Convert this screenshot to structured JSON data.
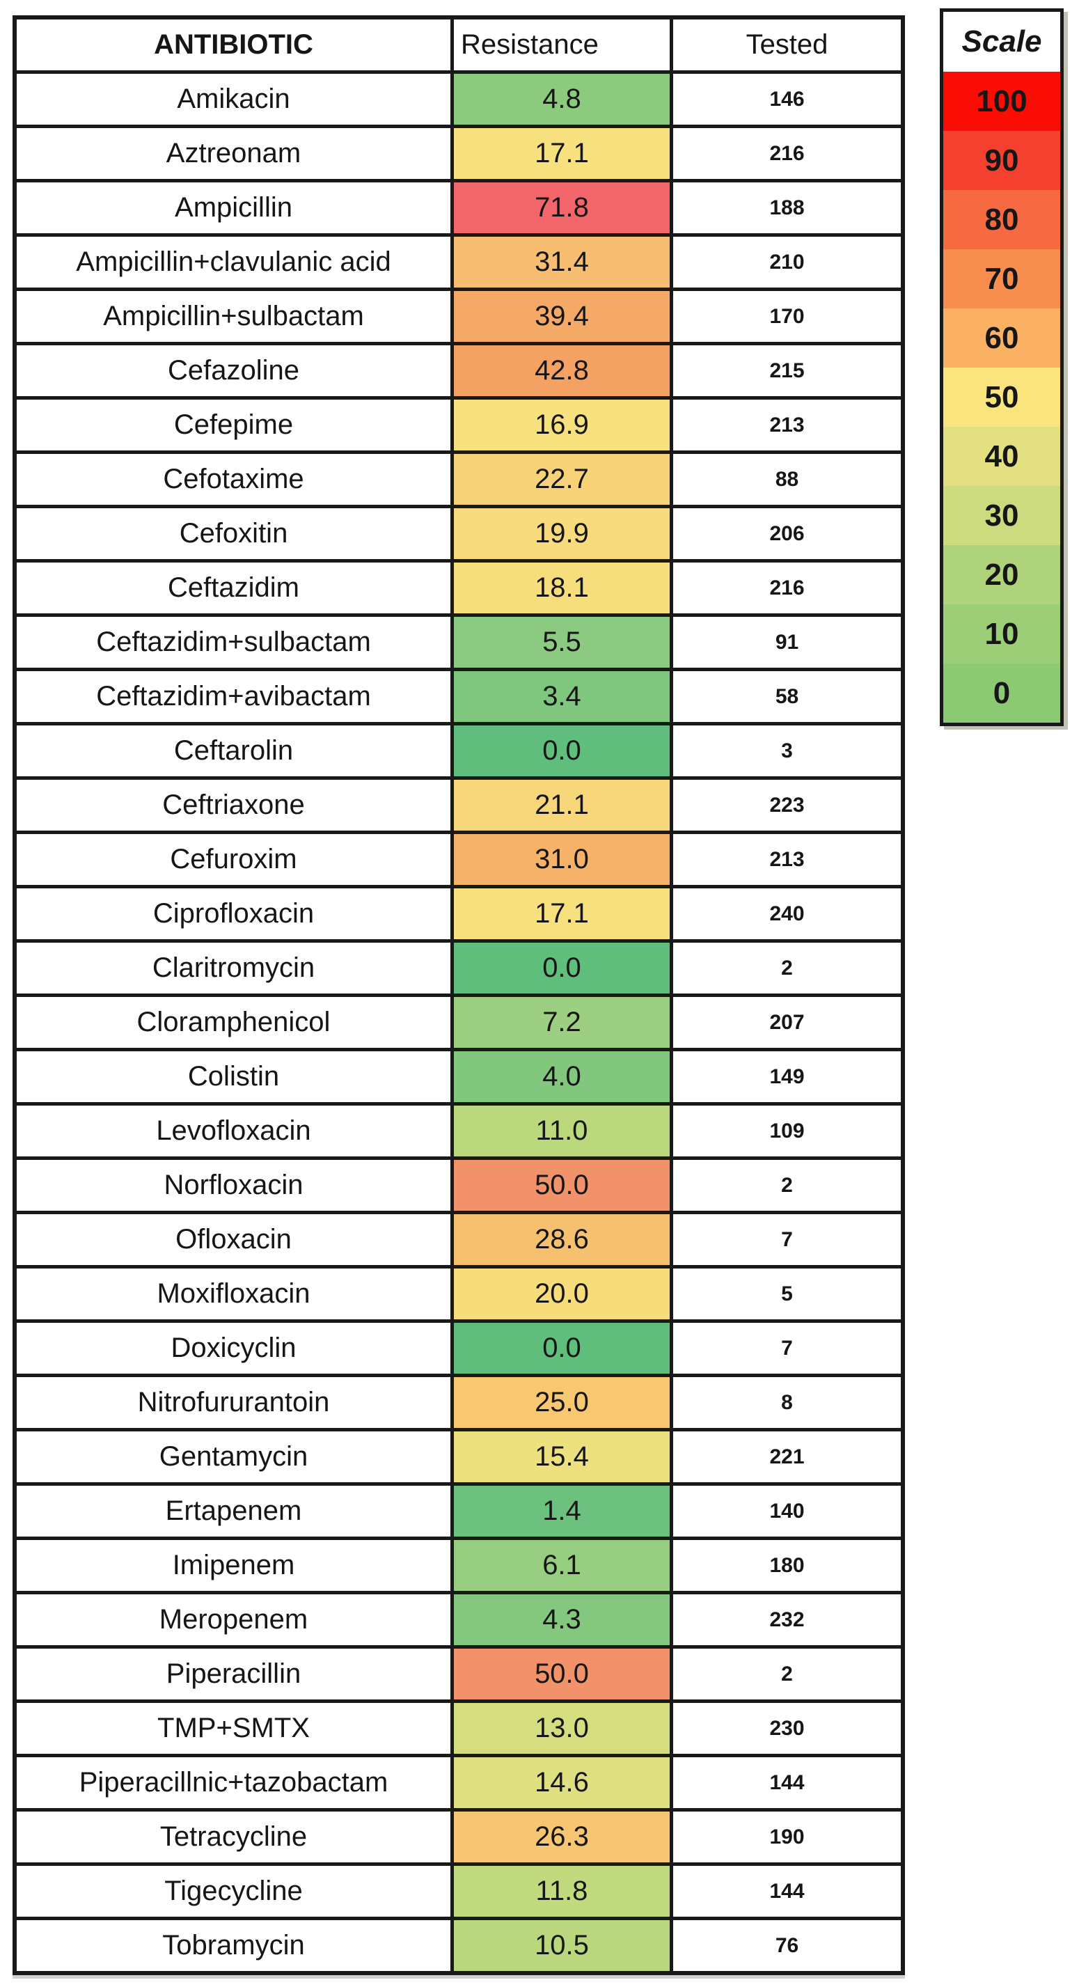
{
  "table": {
    "headers": {
      "antibiotic": "ANTIBIOTIC",
      "resistance": "Resistance",
      "tested": "Tested"
    },
    "rows": [
      {
        "name": "Amikacin",
        "resistance": "4.8",
        "tested": "146",
        "color": "#8CCB7E"
      },
      {
        "name": "Aztreonam",
        "resistance": "17.1",
        "tested": "216",
        "color": "#F7E07E"
      },
      {
        "name": "Ampicillin",
        "resistance": "71.8",
        "tested": "188",
        "color": "#F2656A"
      },
      {
        "name": "Ampicillin+clavulanic acid",
        "resistance": "31.4",
        "tested": "210",
        "color": "#F7BD71"
      },
      {
        "name": "Ampicillin+sulbactam",
        "resistance": "39.4",
        "tested": "170",
        "color": "#F5A966"
      },
      {
        "name": "Cefazoline",
        "resistance": "42.8",
        "tested": "215",
        "color": "#F4A264"
      },
      {
        "name": "Cefepime",
        "resistance": "16.9",
        "tested": "213",
        "color": "#F7E17E"
      },
      {
        "name": "Cefotaxime",
        "resistance": "22.7",
        "tested": "88",
        "color": "#F7D278"
      },
      {
        "name": "Cefoxitin",
        "resistance": "19.9",
        "tested": "206",
        "color": "#F7DB7C"
      },
      {
        "name": "Ceftazidim",
        "resistance": "18.1",
        "tested": "216",
        "color": "#F7DE7D"
      },
      {
        "name": "Ceftazidim+sulbactam",
        "resistance": "5.5",
        "tested": "91",
        "color": "#8BCA80"
      },
      {
        "name": "Ceftazidim+avibactam",
        "resistance": "3.4",
        "tested": "58",
        "color": "#7FC77F"
      },
      {
        "name": "Ceftarolin",
        "resistance": "0.0",
        "tested": "3",
        "color": "#5FBE7B"
      },
      {
        "name": "Ceftriaxone",
        "resistance": "21.1",
        "tested": "223",
        "color": "#F7D77A"
      },
      {
        "name": "Cefuroxim",
        "resistance": "31.0",
        "tested": "213",
        "color": "#F6B269"
      },
      {
        "name": "Ciprofloxacin",
        "resistance": "17.1",
        "tested": "240",
        "color": "#F7E07E"
      },
      {
        "name": "Claritromycin",
        "resistance": "0.0",
        "tested": "2",
        "color": "#5FBE7B"
      },
      {
        "name": "Cloramphenicol",
        "resistance": "7.2",
        "tested": "207",
        "color": "#9CCF81"
      },
      {
        "name": "Colistin",
        "resistance": "4.0",
        "tested": "149",
        "color": "#81C77E"
      },
      {
        "name": "Levofloxacin",
        "resistance": "11.0",
        "tested": "109",
        "color": "#BCD87D"
      },
      {
        "name": "Norfloxacin",
        "resistance": "50.0",
        "tested": "2",
        "color": "#F2926B"
      },
      {
        "name": "Ofloxacin",
        "resistance": "28.6",
        "tested": "7",
        "color": "#F6C16E"
      },
      {
        "name": "Moxifloxacin",
        "resistance": "20.0",
        "tested": "5",
        "color": "#F7DC7B"
      },
      {
        "name": "Doxicyclin",
        "resistance": "0.0",
        "tested": "7",
        "color": "#5FBE7B"
      },
      {
        "name": "Nitrofururantoin",
        "resistance": "25.0",
        "tested": "8",
        "color": "#F7C870"
      },
      {
        "name": "Gentamycin",
        "resistance": "15.4",
        "tested": "221",
        "color": "#EDE07F"
      },
      {
        "name": "Ertapenem",
        "resistance": "1.4",
        "tested": "140",
        "color": "#6BC17D"
      },
      {
        "name": "Imipenem",
        "resistance": "6.1",
        "tested": "180",
        "color": "#96CD80"
      },
      {
        "name": "Meropenem",
        "resistance": "4.3",
        "tested": "232",
        "color": "#83C87E"
      },
      {
        "name": "Piperacillin",
        "resistance": "50.0",
        "tested": "2",
        "color": "#F2926B"
      },
      {
        "name": "TMP+SMTX",
        "resistance": "13.0",
        "tested": "230",
        "color": "#D4DE80"
      },
      {
        "name": "Piperacillnic+tazobactam",
        "resistance": "14.6",
        "tested": "144",
        "color": "#DFE081"
      },
      {
        "name": "Tetracycline",
        "resistance": "26.3",
        "tested": "190",
        "color": "#F7C672"
      },
      {
        "name": "Tigecycline",
        "resistance": "11.8",
        "tested": "144",
        "color": "#C2DA7E"
      },
      {
        "name": "Tobramycin",
        "resistance": "10.5",
        "tested": "76",
        "color": "#BAD77D"
      }
    ]
  },
  "legend": {
    "title": "Scale",
    "steps": [
      {
        "label": "100",
        "color": "#F90D05"
      },
      {
        "label": "90",
        "color": "#F4402E"
      },
      {
        "label": "80",
        "color": "#F56A41"
      },
      {
        "label": "70",
        "color": "#F78E50"
      },
      {
        "label": "60",
        "color": "#FAB164"
      },
      {
        "label": "50",
        "color": "#F9E47E"
      },
      {
        "label": "40",
        "color": "#E2E080"
      },
      {
        "label": "30",
        "color": "#CBDB7E"
      },
      {
        "label": "20",
        "color": "#AFD37B"
      },
      {
        "label": "10",
        "color": "#9CCE78"
      },
      {
        "label": "0",
        "color": "#8BC973"
      }
    ]
  },
  "chart_data": {
    "type": "heatmap",
    "title": "",
    "columns": [
      "ANTIBIOTIC",
      "Resistance",
      "Tested"
    ],
    "rows": [
      [
        "Amikacin",
        4.8,
        146
      ],
      [
        "Aztreonam",
        17.1,
        216
      ],
      [
        "Ampicillin",
        71.8,
        188
      ],
      [
        "Ampicillin+clavulanic acid",
        31.4,
        210
      ],
      [
        "Ampicillin+sulbactam",
        39.4,
        170
      ],
      [
        "Cefazoline",
        42.8,
        215
      ],
      [
        "Cefepime",
        16.9,
        213
      ],
      [
        "Cefotaxime",
        22.7,
        88
      ],
      [
        "Cefoxitin",
        19.9,
        206
      ],
      [
        "Ceftazidim",
        18.1,
        216
      ],
      [
        "Ceftazidim+sulbactam",
        5.5,
        91
      ],
      [
        "Ceftazidim+avibactam",
        3.4,
        58
      ],
      [
        "Ceftarolin",
        0.0,
        3
      ],
      [
        "Ceftriaxone",
        21.1,
        223
      ],
      [
        "Cefuroxim",
        31.0,
        213
      ],
      [
        "Ciprofloxacin",
        17.1,
        240
      ],
      [
        "Claritromycin",
        0.0,
        2
      ],
      [
        "Cloramphenicol",
        7.2,
        207
      ],
      [
        "Colistin",
        4.0,
        149
      ],
      [
        "Levofloxacin",
        11.0,
        109
      ],
      [
        "Norfloxacin",
        50.0,
        2
      ],
      [
        "Ofloxacin",
        28.6,
        7
      ],
      [
        "Moxifloxacin",
        20.0,
        5
      ],
      [
        "Doxicyclin",
        0.0,
        7
      ],
      [
        "Nitrofururantoin",
        25.0,
        8
      ],
      [
        "Gentamycin",
        15.4,
        221
      ],
      [
        "Ertapenem",
        1.4,
        140
      ],
      [
        "Imipenem",
        6.1,
        180
      ],
      [
        "Meropenem",
        4.3,
        232
      ],
      [
        "Piperacillin",
        50.0,
        2
      ],
      [
        "TMP+SMTX",
        13.0,
        230
      ],
      [
        "Piperacillnic+tazobactam",
        14.6,
        144
      ],
      [
        "Tetracycline",
        26.3,
        190
      ],
      [
        "Tigecycline",
        11.8,
        144
      ],
      [
        "Tobramycin",
        10.5,
        76
      ]
    ],
    "heat_column": "Resistance",
    "legend": {
      "title": "Scale",
      "ticks": [
        100,
        90,
        80,
        70,
        60,
        50,
        40,
        30,
        20,
        10,
        0
      ],
      "position": "right",
      "max_color": "#F90D05",
      "mid_color": "#F9E47E",
      "min_color": "#8BC973"
    }
  }
}
